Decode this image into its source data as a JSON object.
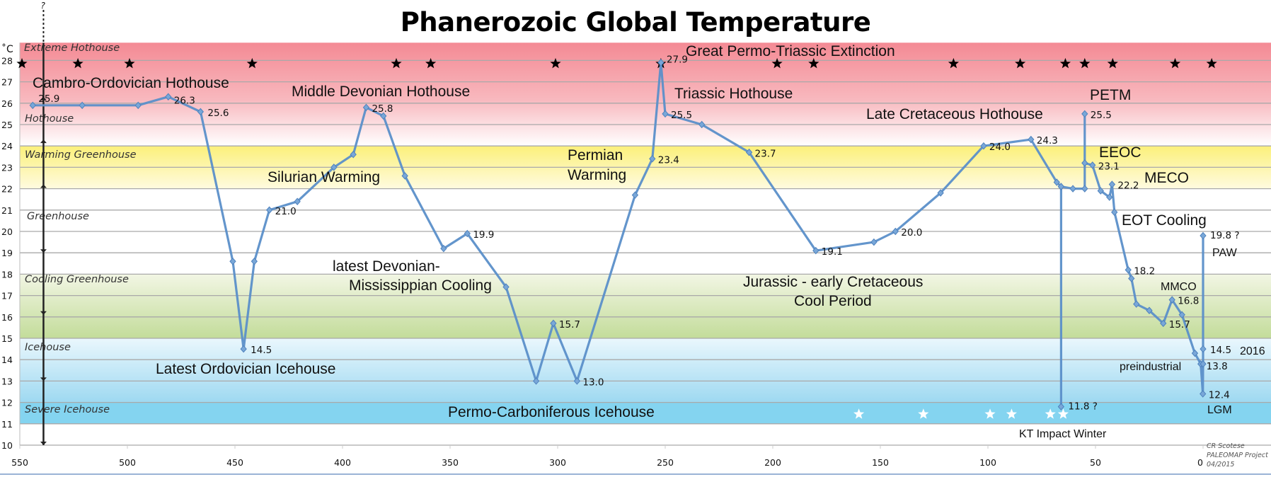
{
  "chart_data": {
    "type": "line",
    "title": "Phanerozoic Global Temperature",
    "ylabel": "˚C",
    "xlabel": "",
    "xlim": [
      550,
      0
    ],
    "ylim": [
      10,
      28
    ],
    "x_ticks": [
      "550",
      "500",
      "450",
      "400",
      "350",
      "300",
      "250",
      "200",
      "150",
      "100",
      "50",
      "0"
    ],
    "y_ticks": [
      "10",
      "11",
      "12",
      "13",
      "14",
      "15",
      "16",
      "17",
      "18",
      "19",
      "20",
      "21",
      "22",
      "23",
      "24",
      "25",
      "26",
      "27",
      "28"
    ],
    "grid": true,
    "line_color": "#5b8fc9",
    "bands": [
      {
        "name": "Extreme Hothouse",
        "from": 28,
        "to": 29,
        "color": "#f48a94"
      },
      {
        "name": "Hothouse",
        "from": 24,
        "to": 28,
        "color": "#f8b8be"
      },
      {
        "name": "Warming Greenhouse",
        "from": 22,
        "to": 24,
        "color": "#fbf07a"
      },
      {
        "name": "Greenhouse",
        "from": 18,
        "to": 22,
        "color": "#ffffff"
      },
      {
        "name": "Cooling Greenhouse",
        "from": 15,
        "to": 18,
        "color": "#c3dc9a"
      },
      {
        "name": "Icehouse",
        "from": 12,
        "to": 15,
        "color": "#9ed9f1"
      },
      {
        "name": "Severe Icehouse",
        "from": 11,
        "to": 12,
        "color": "#84d4f0"
      }
    ],
    "series": [
      {
        "points": [
          {
            "x": 544,
            "y": 25.9,
            "label": "25.9"
          },
          {
            "x": 521,
            "y": 25.9
          },
          {
            "x": 495,
            "y": 25.9
          },
          {
            "x": 481,
            "y": 26.3,
            "label": "26.3"
          },
          {
            "x": 466,
            "y": 25.6,
            "label": "25.6"
          },
          {
            "x": 451,
            "y": 18.6
          },
          {
            "x": 446,
            "y": 14.5,
            "label": "14.5"
          },
          {
            "x": 441,
            "y": 18.6
          },
          {
            "x": 434,
            "y": 21.0,
            "label": "21.0"
          },
          {
            "x": 421,
            "y": 21.4
          },
          {
            "x": 404,
            "y": 23.0
          },
          {
            "x": 395,
            "y": 23.6
          },
          {
            "x": 389,
            "y": 25.8,
            "label": "25.8"
          },
          {
            "x": 381,
            "y": 25.4
          },
          {
            "x": 371,
            "y": 22.6
          },
          {
            "x": 353,
            "y": 19.2
          },
          {
            "x": 342,
            "y": 19.9,
            "label": "19.9"
          },
          {
            "x": 324,
            "y": 17.4
          },
          {
            "x": 310,
            "y": 13.0
          },
          {
            "x": 302,
            "y": 15.7,
            "label": "15.7"
          },
          {
            "x": 291,
            "y": 13.0,
            "label": "13.0"
          },
          {
            "x": 264,
            "y": 21.7
          },
          {
            "x": 256,
            "y": 23.4,
            "label": "23.4"
          },
          {
            "x": 252,
            "y": 27.9,
            "label": "27.9"
          },
          {
            "x": 250,
            "y": 25.5,
            "label": "25.5"
          },
          {
            "x": 233,
            "y": 25.0
          },
          {
            "x": 211,
            "y": 23.7,
            "label": "23.7"
          },
          {
            "x": 180,
            "y": 19.1,
            "label": "19.1"
          },
          {
            "x": 153,
            "y": 19.5
          },
          {
            "x": 143,
            "y": 20.0,
            "label": "20.0"
          },
          {
            "x": 122,
            "y": 21.8
          },
          {
            "x": 102,
            "y": 24.0,
            "label": "24.0"
          },
          {
            "x": 80,
            "y": 24.3,
            "label": "24.3"
          },
          {
            "x": 68,
            "y": 22.3
          },
          {
            "x": 66,
            "y": 22.1
          },
          {
            "x": 66,
            "y": 11.8,
            "label": "11.8 ?"
          },
          {
            "x": 66,
            "y": 22.1
          },
          {
            "x": 60.5,
            "y": 22.0
          },
          {
            "x": 55,
            "y": 22.0
          },
          {
            "x": 55,
            "y": 25.5,
            "label": "25.5"
          },
          {
            "x": 55,
            "y": 23.2
          },
          {
            "x": 51.4,
            "y": 23.1,
            "label": "23.1"
          },
          {
            "x": 47.6,
            "y": 21.9
          },
          {
            "x": 43.5,
            "y": 21.6
          },
          {
            "x": 42.3,
            "y": 22.2,
            "label": "22.2"
          },
          {
            "x": 41.2,
            "y": 20.9
          },
          {
            "x": 34.8,
            "y": 18.2,
            "label": "18.2"
          },
          {
            "x": 33.3,
            "y": 17.8
          },
          {
            "x": 31,
            "y": 16.6
          },
          {
            "x": 25,
            "y": 16.3
          },
          {
            "x": 18.5,
            "y": 15.7,
            "label": "15.7"
          },
          {
            "x": 14.4,
            "y": 16.8,
            "label": "16.8"
          },
          {
            "x": 9.8,
            "y": 16.1
          },
          {
            "x": 3.8,
            "y": 14.3
          },
          {
            "x": 1.1,
            "y": 13.8,
            "label": "13.8"
          },
          {
            "x": 0.1,
            "y": 12.4,
            "label": "12.4"
          },
          {
            "x": 0,
            "y": 13.8
          },
          {
            "x": 0,
            "y": 14.5,
            "label": "14.5"
          },
          {
            "x": 0,
            "y": 19.8,
            "label": "19.8 ?"
          }
        ]
      }
    ],
    "extinction_stars": {
      "y": 27.85,
      "color": "#000000",
      "x": [
        549,
        523,
        499,
        442,
        375,
        359,
        301,
        252,
        198,
        181,
        116,
        85,
        64,
        55,
        42,
        13,
        -4
      ]
    },
    "impact_stars": {
      "y": 11.45,
      "color": "#ffffff",
      "x": [
        160,
        130,
        99,
        89,
        71,
        65
      ]
    },
    "annotations": [
      "Cambro-Ordovician Hothouse",
      "Middle Devonian Hothouse",
      "Silurian Warming",
      "latest Devonian-",
      "Mississippian Cooling",
      "Latest Ordovician Icehouse",
      "Permo-Carboniferous Icehouse",
      "Permian",
      "Warming",
      "Great Permo-Triassic Extinction",
      "Triassic Hothouse",
      "Late Cretaceous Hothouse",
      "Jurassic - early Cretaceous",
      "Cool Period",
      "PETM",
      "EEOC",
      "MECO",
      "EOT Cooling",
      "MMCO",
      "preindustrial",
      "2016",
      "PAW",
      "LGM",
      "KT Impact Winter"
    ],
    "uncertainty_marker": "?",
    "credit": [
      "CR Scotese",
      "PALEOMAP Project",
      "04/2015"
    ]
  }
}
